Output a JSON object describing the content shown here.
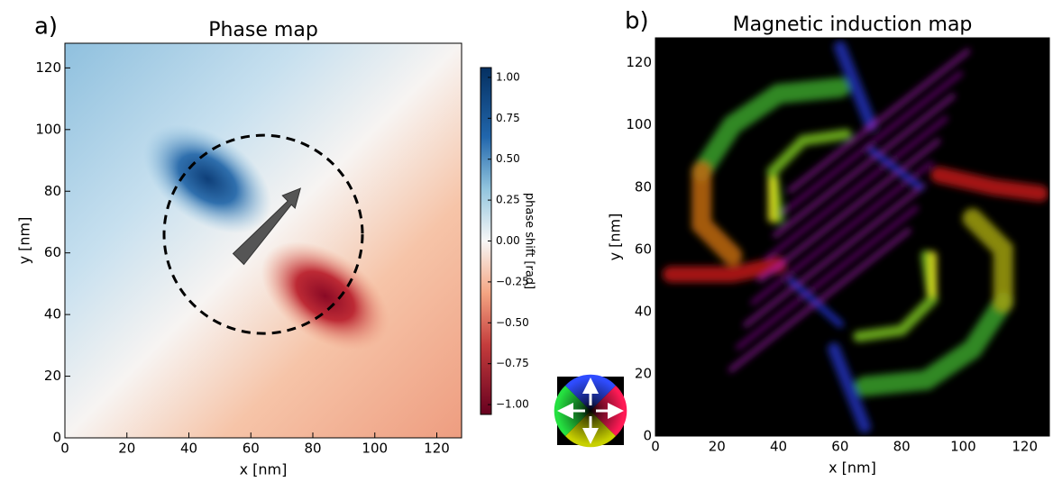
{
  "chart_data": [
    {
      "type": "heatmap",
      "panel_label": "a)",
      "title": "Phase map",
      "x_label": "x [nm]",
      "y_label": "y [nm]",
      "xlim": [
        0,
        128
      ],
      "ylim": [
        0,
        128
      ],
      "xticks": [
        0,
        20,
        40,
        60,
        80,
        100,
        120
      ],
      "yticks": [
        0,
        20,
        40,
        60,
        80,
        100,
        120
      ],
      "colormap": "RdBu",
      "colorbar": {
        "label": "phase shift [rad]",
        "lim": [
          -1.06,
          1.06
        ],
        "ticks": [
          {
            "value": 1,
            "label": "1.00"
          },
          {
            "value": 0.75,
            "label": "0.75"
          },
          {
            "value": 0.5,
            "label": "0.50"
          },
          {
            "value": 0.25,
            "label": "0.25"
          },
          {
            "value": 0,
            "label": "0.00"
          },
          {
            "value": -0.25,
            "label": "−0.25"
          },
          {
            "value": -0.5,
            "label": "−0.50"
          },
          {
            "value": -0.75,
            "label": "−0.75"
          },
          {
            "value": -1,
            "label": "−1.00"
          }
        ]
      }
    },
    {
      "type": "heatmap",
      "panel_label": "b)",
      "title": "Magnetic induction map",
      "x_label": "x [nm]",
      "y_label": "y [nm]",
      "xlim": [
        0,
        128
      ],
      "ylim": [
        0,
        128
      ],
      "xticks": [
        0,
        20,
        40,
        60,
        80,
        100,
        120
      ],
      "yticks": [
        0,
        20,
        40,
        60,
        80,
        100,
        120
      ],
      "colormap": "hsv-wheel"
    }
  ]
}
